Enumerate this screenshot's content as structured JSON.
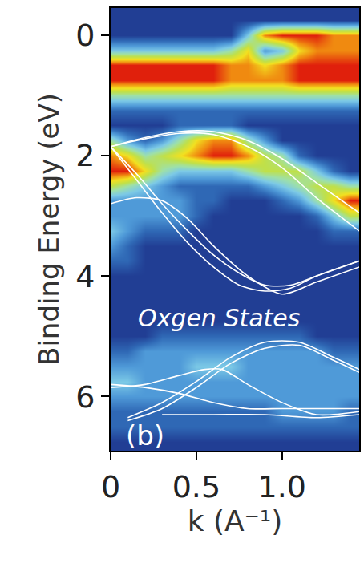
{
  "chart_data": {
    "type": "heatmap",
    "x_label": "k (A⁻¹)",
    "y_label": "Binding Energy (eV)",
    "xlim": [
      0,
      1.45
    ],
    "xticks": [
      0,
      0.5,
      {
        "value": 1,
        "label": "1.0"
      }
    ],
    "ylim": [
      6.9,
      -0.45
    ],
    "yticks": [
      0,
      2,
      4,
      6
    ],
    "grid": false,
    "annotations": [
      {
        "text": "Oxgen States",
        "x": 0.63,
        "y": 4.7
      },
      {
        "text": "(b)",
        "x": 0.2,
        "y": 6.65
      }
    ],
    "heatmap": {
      "x": [
        0,
        0.1,
        0.2,
        0.3,
        0.4,
        0.5,
        0.6,
        0.7,
        0.8,
        0.9,
        1.0,
        1.1,
        1.2,
        1.3,
        1.4
      ],
      "y": [
        -0.5,
        -0.25,
        0,
        0.25,
        0.5,
        0.75,
        1.0,
        1.25,
        1.5,
        1.75,
        2.0,
        2.25,
        2.5,
        2.75,
        3.0,
        3.25,
        3.5,
        3.75,
        4.0,
        4.25,
        4.5,
        4.75,
        5.0,
        5.25,
        5.5,
        5.75,
        6.0,
        6.25,
        6.5,
        6.75,
        7.0
      ],
      "z": [
        [
          1,
          1,
          1,
          1,
          1,
          1,
          1,
          1,
          1,
          1,
          1,
          1,
          1,
          1,
          1
        ],
        [
          1,
          1,
          1,
          1,
          1,
          1,
          1,
          1,
          1,
          1,
          1,
          1,
          1,
          1,
          1
        ],
        [
          1,
          1,
          1,
          1,
          1,
          1,
          1,
          1,
          4,
          8,
          9,
          9,
          9,
          8,
          8
        ],
        [
          4,
          4,
          4,
          4,
          4,
          4,
          4,
          5,
          7,
          3,
          4,
          7,
          8,
          8,
          8
        ],
        [
          9,
          9,
          9,
          9,
          9,
          9,
          9,
          8,
          8,
          7,
          8,
          9,
          9,
          9,
          9
        ],
        [
          9,
          9,
          9,
          9,
          9,
          9,
          9,
          8,
          8,
          8,
          8,
          9,
          9,
          9,
          9
        ],
        [
          5,
          5,
          5,
          5,
          5,
          5,
          5,
          5,
          5,
          5,
          5,
          5,
          5,
          5,
          5
        ],
        [
          2,
          2,
          2,
          2,
          2,
          2,
          2,
          2,
          2,
          2,
          2,
          2,
          2,
          2,
          2
        ],
        [
          1,
          1,
          1,
          1,
          2,
          2,
          2,
          2,
          1,
          1,
          1,
          1,
          1,
          1,
          1
        ],
        [
          5,
          3,
          2,
          3,
          5,
          7,
          8,
          8,
          5,
          3,
          1,
          1,
          1,
          1,
          1
        ],
        [
          8,
          7,
          5,
          6,
          7,
          8,
          9,
          9,
          8,
          6,
          5,
          2,
          1,
          1,
          1
        ],
        [
          9,
          9,
          7,
          5,
          4,
          4,
          4,
          4,
          5,
          6,
          6,
          6,
          4,
          2,
          1
        ],
        [
          6,
          5,
          4,
          3,
          2,
          2,
          2,
          2,
          2,
          3,
          4,
          5,
          6,
          6,
          5
        ],
        [
          3,
          3,
          3,
          3,
          3,
          2,
          2,
          1,
          1,
          1,
          2,
          3,
          5,
          7,
          9
        ],
        [
          3,
          3,
          3,
          3,
          3,
          2,
          1,
          1,
          1,
          1,
          1,
          1,
          2,
          4,
          6
        ],
        [
          4,
          3,
          2,
          2,
          2,
          1,
          1,
          1,
          1,
          1,
          1,
          1,
          1,
          2,
          2
        ],
        [
          3,
          2,
          1,
          1,
          1,
          1,
          1,
          1,
          1,
          1,
          1,
          1,
          1,
          1,
          1
        ],
        [
          2,
          2,
          1,
          1,
          1,
          1,
          1,
          1,
          1,
          1,
          1,
          1,
          1,
          1,
          1
        ],
        [
          1,
          1,
          1,
          1,
          1,
          1,
          1,
          1,
          1,
          1,
          1,
          1,
          1,
          1,
          1
        ],
        [
          1,
          1,
          1,
          1,
          1,
          1,
          1,
          1,
          1,
          1,
          1,
          1,
          1,
          1,
          1
        ],
        [
          1,
          1,
          1,
          1,
          1,
          1,
          1,
          1,
          1,
          1,
          1,
          1,
          1,
          1,
          1
        ],
        [
          1,
          1,
          1,
          1,
          1,
          1,
          1,
          1,
          1,
          1,
          1,
          1,
          1,
          1,
          1
        ],
        [
          1,
          1,
          1,
          2,
          2,
          2,
          2,
          2,
          2,
          2,
          2,
          2,
          1,
          1,
          1
        ],
        [
          2,
          2,
          3,
          3,
          3,
          3,
          3,
          3,
          3,
          3,
          3,
          3,
          3,
          2,
          2
        ],
        [
          3,
          3,
          3,
          3,
          3,
          4,
          4,
          4,
          3,
          3,
          3,
          3,
          3,
          3,
          3
        ],
        [
          4,
          4,
          3,
          3,
          3,
          3,
          3,
          3,
          3,
          3,
          3,
          3,
          3,
          3,
          3
        ],
        [
          3,
          3,
          3,
          3,
          3,
          3,
          3,
          3,
          3,
          3,
          3,
          3,
          3,
          3,
          3
        ],
        [
          2,
          2,
          2,
          2,
          2,
          2,
          2,
          2,
          2,
          2,
          3,
          3,
          3,
          3,
          2
        ],
        [
          2,
          2,
          2,
          2,
          2,
          2,
          2,
          2,
          2,
          2,
          2,
          2,
          2,
          2,
          2
        ],
        [
          1,
          1,
          1,
          1,
          1,
          1,
          1,
          1,
          1,
          1,
          1,
          1,
          1,
          1,
          1
        ],
        [
          1,
          1,
          1,
          1,
          1,
          1,
          1,
          1,
          1,
          1,
          1,
          1,
          1,
          1,
          1
        ]
      ],
      "zlim": [
        0,
        9
      ]
    },
    "series": [
      {
        "type": "line",
        "color": "#ffffff",
        "x": [
          0,
          0.2,
          0.4,
          0.6,
          0.8,
          1.0,
          1.2,
          1.45
        ],
        "values": [
          1.85,
          1.7,
          1.6,
          1.6,
          1.75,
          2.05,
          2.45,
          2.95
        ]
      },
      {
        "type": "line",
        "color": "#ffffff",
        "x": [
          0,
          0.2,
          0.4,
          0.6,
          0.8,
          1.0,
          1.2,
          1.45
        ],
        "values": [
          1.85,
          1.72,
          1.63,
          1.65,
          1.85,
          2.2,
          2.7,
          3.25
        ]
      },
      {
        "type": "line",
        "color": "#ffffff",
        "x": [
          0,
          0.15,
          0.3,
          0.45,
          0.6,
          0.75,
          0.9,
          1.05,
          1.2,
          1.45
        ],
        "values": [
          1.85,
          2.3,
          2.8,
          3.25,
          3.65,
          3.95,
          4.15,
          4.15,
          4.0,
          3.75
        ]
      },
      {
        "type": "line",
        "color": "#ffffff",
        "x": [
          0,
          0.15,
          0.3,
          0.45,
          0.6,
          0.75,
          0.9,
          1.05,
          1.2,
          1.45
        ],
        "values": [
          1.85,
          2.4,
          2.95,
          3.45,
          3.85,
          4.15,
          4.25,
          4.2,
          4.0,
          3.75
        ]
      },
      {
        "type": "line",
        "color": "#ffffff",
        "x": [
          0,
          0.15,
          0.3,
          0.45,
          0.6,
          0.8,
          1.0,
          1.2,
          1.45
        ],
        "values": [
          2.8,
          2.7,
          2.75,
          3.05,
          3.5,
          4.0,
          4.3,
          4.1,
          3.85
        ]
      },
      {
        "type": "line",
        "color": "#ffffff",
        "x": [
          0,
          0.2,
          0.4,
          0.6,
          0.8,
          1.0,
          1.2,
          1.45
        ],
        "values": [
          5.8,
          5.85,
          5.95,
          6.1,
          6.2,
          6.2,
          6.2,
          6.2
        ]
      },
      {
        "type": "line",
        "color": "#ffffff",
        "x": [
          0,
          0.2,
          0.4,
          0.55,
          0.65,
          0.8,
          1.0,
          1.2,
          1.45
        ],
        "values": [
          5.85,
          5.8,
          5.65,
          5.55,
          5.55,
          5.8,
          6.1,
          6.3,
          6.25
        ]
      },
      {
        "type": "line",
        "color": "#ffffff",
        "x": [
          0.1,
          0.3,
          0.5,
          0.7,
          0.9,
          1.1,
          1.3,
          1.45
        ],
        "values": [
          6.35,
          6.1,
          5.75,
          5.35,
          5.1,
          5.1,
          5.35,
          5.55
        ]
      },
      {
        "type": "line",
        "color": "#ffffff",
        "x": [
          0.1,
          0.3,
          0.5,
          0.7,
          0.9,
          1.1,
          1.3,
          1.45
        ],
        "values": [
          6.4,
          6.2,
          5.85,
          5.45,
          5.2,
          5.15,
          5.4,
          5.6
        ]
      },
      {
        "type": "line",
        "color": "#ffffff",
        "x": [
          0.3,
          0.6,
          0.9,
          1.2,
          1.45
        ],
        "values": [
          6.3,
          6.3,
          6.3,
          6.35,
          6.3
        ]
      }
    ]
  }
}
